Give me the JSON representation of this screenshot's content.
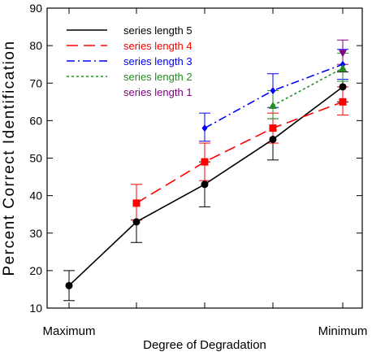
{
  "chart_data": {
    "type": "line",
    "xlabel": "Degree of Degradation",
    "ylabel": "Percent Correct Identification",
    "ylim": [
      10,
      90
    ],
    "yticks": [
      10,
      20,
      30,
      40,
      50,
      60,
      70,
      80,
      90
    ],
    "x": [
      1,
      2,
      3,
      4,
      5
    ],
    "xtick_labels": [
      "Maximum",
      "",
      "",
      "",
      "Minimum"
    ],
    "legend_position": "top-left",
    "grid": false,
    "series": [
      {
        "name": "series length 5",
        "color": "#000000",
        "dash": "solid",
        "marker": "circle",
        "x": [
          1,
          2,
          3,
          4,
          5
        ],
        "values": [
          16,
          33,
          43,
          55,
          69
        ],
        "err_low": [
          12,
          27.5,
          37,
          49.5,
          65
        ],
        "err_high": [
          20,
          33.5,
          49,
          60.5,
          73
        ]
      },
      {
        "name": "series length 4",
        "color": "#ff0000",
        "dash": "dashed",
        "marker": "square",
        "x": [
          2,
          3,
          4,
          5
        ],
        "values": [
          38,
          49,
          58,
          65
        ],
        "err_low": [
          33.5,
          44,
          54,
          61.5
        ],
        "err_high": [
          43,
          54,
          62,
          69
        ]
      },
      {
        "name": "series length 3",
        "color": "#0000ff",
        "dash": "dashdot",
        "marker": "diamond",
        "x": [
          3,
          4,
          5
        ],
        "values": [
          58,
          68,
          75
        ],
        "err_low": [
          54.5,
          63.5,
          71
        ],
        "err_high": [
          62,
          72.5,
          79
        ]
      },
      {
        "name": "series length 2",
        "color": "#228b22",
        "dash": "dotted",
        "marker": "triangle-up",
        "x": [
          4,
          5
        ],
        "values": [
          64,
          74
        ],
        "err_low": [
          60.5,
          70.5
        ],
        "err_high": [
          68,
          78
        ]
      },
      {
        "name": "series length 1",
        "color": "#800080",
        "dash": "none",
        "marker": "triangle-down",
        "x": [
          5
        ],
        "values": [
          78
        ],
        "err_low": [
          75
        ],
        "err_high": [
          81.5
        ]
      }
    ]
  }
}
